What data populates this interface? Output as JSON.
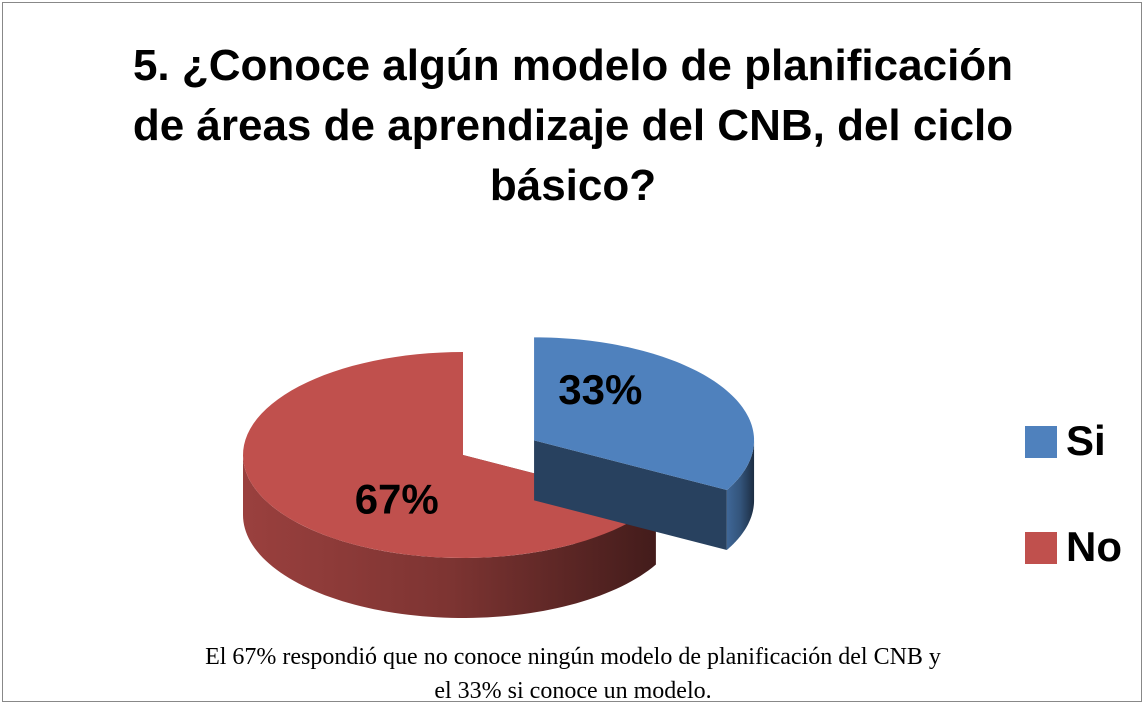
{
  "chart_data": {
    "type": "pie",
    "title": "5. ¿Conoce algún modelo de planificación de áreas de aprendizaje del CNB, del ciclo básico?",
    "categories": [
      "Si",
      "No"
    ],
    "values": [
      33,
      67
    ],
    "value_labels": [
      "33%",
      "67%"
    ],
    "colors": [
      "#4f81bd",
      "#c0504d"
    ],
    "legend": "right",
    "annotation": "El 67% respondió que no conoce ningún modelo  de planificación del  CNB y el 33% si conoce un modelo."
  }
}
